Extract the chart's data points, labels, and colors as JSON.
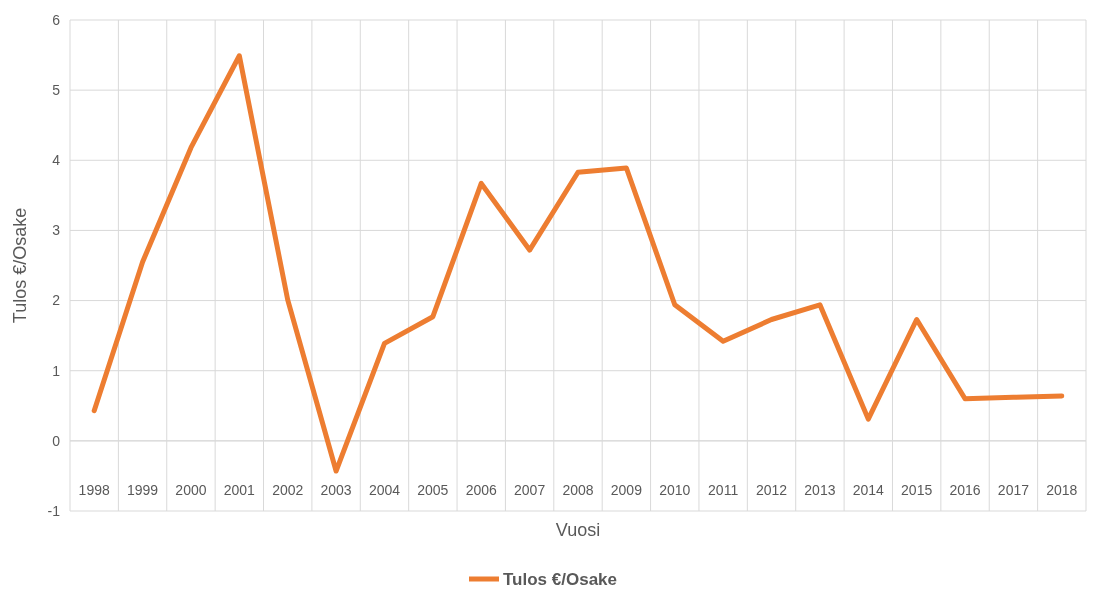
{
  "chart_data": {
    "type": "line",
    "xlabel": "Vuosi",
    "ylabel": "Tulos €/Osake",
    "categories": [
      "1998",
      "1999",
      "2000",
      "2001",
      "2002",
      "2003",
      "2004",
      "2005",
      "2006",
      "2007",
      "2008",
      "2009",
      "2010",
      "2011",
      "2012",
      "2013",
      "2014",
      "2015",
      "2016",
      "2017",
      "2018"
    ],
    "series": [
      {
        "name": "Tulos €/Osake",
        "color": "#ed7d31",
        "values": [
          0.43,
          2.55,
          4.18,
          5.49,
          2.01,
          -0.43,
          1.39,
          1.77,
          3.67,
          2.72,
          3.83,
          3.89,
          1.94,
          1.42,
          1.73,
          1.94,
          0.31,
          1.73,
          0.6,
          0.62,
          0.64
        ]
      }
    ],
    "ylim": [
      -1,
      6
    ],
    "yticks": [
      -1,
      0,
      1,
      2,
      3,
      4,
      5,
      6
    ],
    "grid": true,
    "legend": "bottom",
    "marker": "none",
    "line_style": "solid"
  }
}
